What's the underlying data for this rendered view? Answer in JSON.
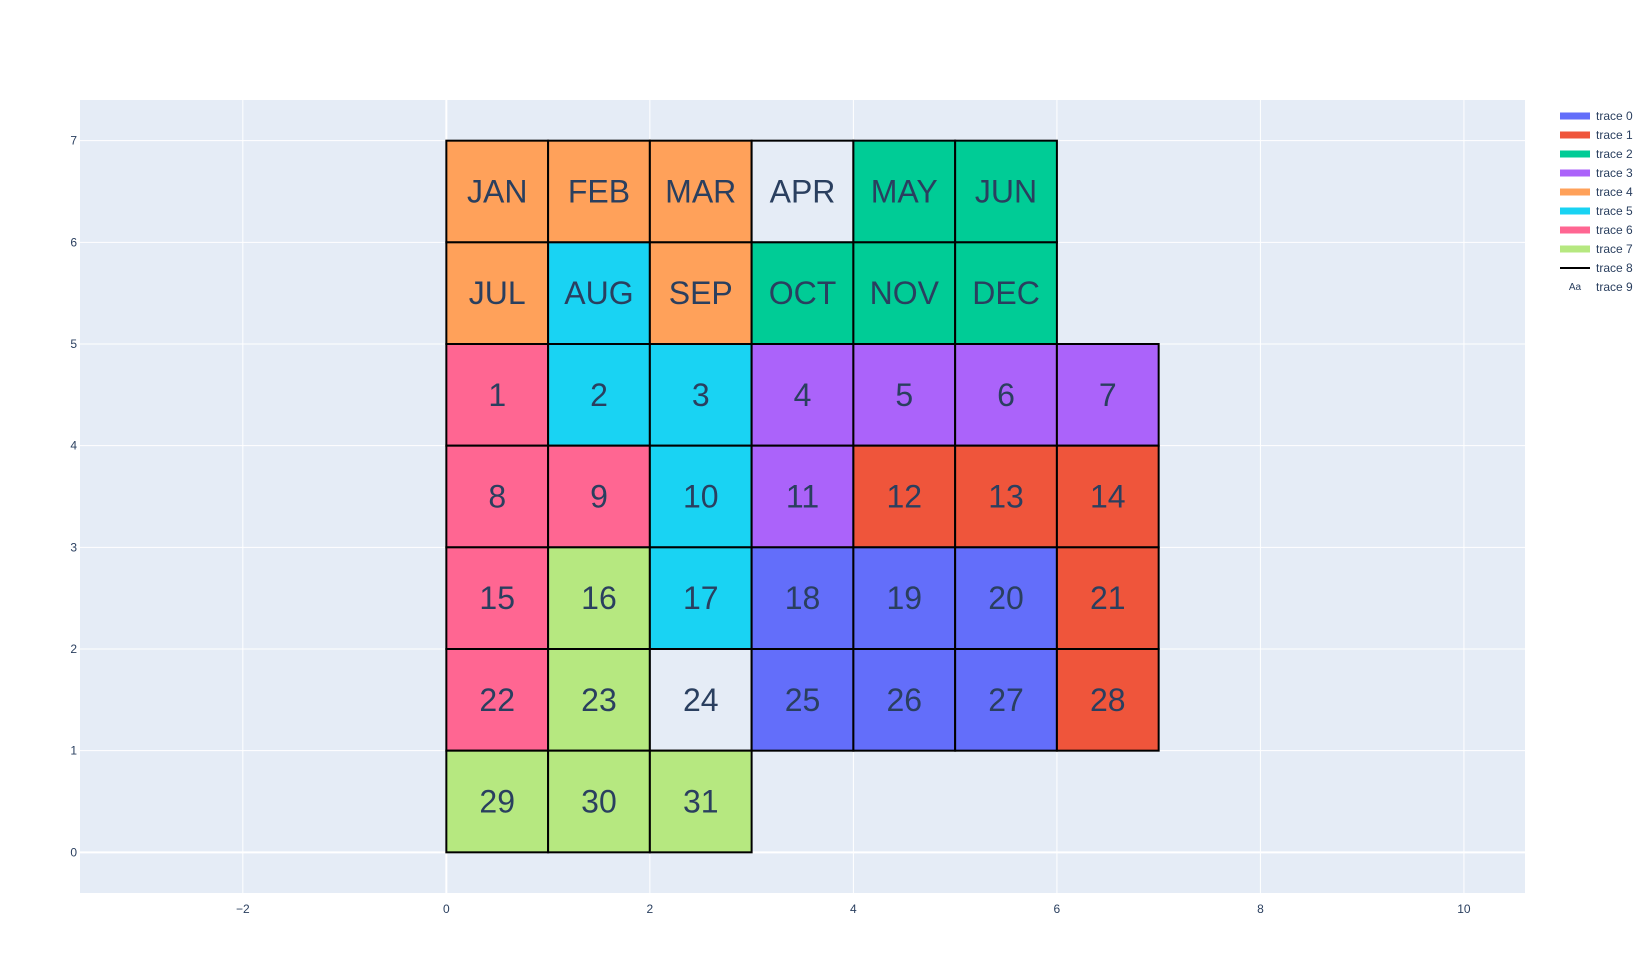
{
  "chart_data": {
    "type": "table",
    "xlim": [
      -3.6,
      10.6
    ],
    "ylim": [
      -0.4,
      7.4
    ],
    "x_ticks": [
      -2,
      0,
      2,
      4,
      6,
      8,
      10
    ],
    "x_tick_labels": [
      "−2",
      "0",
      "2",
      "4",
      "6",
      "8",
      "10"
    ],
    "y_ticks": [
      0,
      1,
      2,
      3,
      4,
      5,
      6,
      7
    ],
    "y_tick_labels": [
      "0",
      "1",
      "2",
      "3",
      "4",
      "5",
      "6",
      "7"
    ],
    "grid": true,
    "legend_position": "top-right",
    "series": [
      {
        "name": "trace 0",
        "color": "#636efa"
      },
      {
        "name": "trace 1",
        "color": "#ef553b"
      },
      {
        "name": "trace 2",
        "color": "#00cc96"
      },
      {
        "name": "trace 3",
        "color": "#ab63fa"
      },
      {
        "name": "trace 4",
        "color": "#ffa15a"
      },
      {
        "name": "trace 5",
        "color": "#19d3f3"
      },
      {
        "name": "trace 6",
        "color": "#ff6692"
      },
      {
        "name": "trace 7",
        "color": "#b6e880"
      },
      {
        "name": "trace 8",
        "color": "#000000",
        "kind": "line"
      },
      {
        "name": "trace 9",
        "color": "#2a3f5f",
        "kind": "text",
        "marker": "Aa"
      }
    ],
    "cells": [
      {
        "x": 0,
        "y": 6,
        "label": "JAN",
        "trace": 4
      },
      {
        "x": 1,
        "y": 6,
        "label": "FEB",
        "trace": 4
      },
      {
        "x": 2,
        "y": 6,
        "label": "MAR",
        "trace": 4
      },
      {
        "x": 3,
        "y": 6,
        "label": "APR",
        "trace": null
      },
      {
        "x": 4,
        "y": 6,
        "label": "MAY",
        "trace": 2
      },
      {
        "x": 5,
        "y": 6,
        "label": "JUN",
        "trace": 2
      },
      {
        "x": 0,
        "y": 5,
        "label": "JUL",
        "trace": 4
      },
      {
        "x": 1,
        "y": 5,
        "label": "AUG",
        "trace": 5
      },
      {
        "x": 2,
        "y": 5,
        "label": "SEP",
        "trace": 4
      },
      {
        "x": 3,
        "y": 5,
        "label": "OCT",
        "trace": 2
      },
      {
        "x": 4,
        "y": 5,
        "label": "NOV",
        "trace": 2
      },
      {
        "x": 5,
        "y": 5,
        "label": "DEC",
        "trace": 2
      },
      {
        "x": 0,
        "y": 4,
        "label": "1",
        "trace": 6
      },
      {
        "x": 1,
        "y": 4,
        "label": "2",
        "trace": 5
      },
      {
        "x": 2,
        "y": 4,
        "label": "3",
        "trace": 5
      },
      {
        "x": 3,
        "y": 4,
        "label": "4",
        "trace": 3
      },
      {
        "x": 4,
        "y": 4,
        "label": "5",
        "trace": 3
      },
      {
        "x": 5,
        "y": 4,
        "label": "6",
        "trace": 3
      },
      {
        "x": 6,
        "y": 4,
        "label": "7",
        "trace": 3
      },
      {
        "x": 0,
        "y": 3,
        "label": "8",
        "trace": 6
      },
      {
        "x": 1,
        "y": 3,
        "label": "9",
        "trace": 6
      },
      {
        "x": 2,
        "y": 3,
        "label": "10",
        "trace": 5
      },
      {
        "x": 3,
        "y": 3,
        "label": "11",
        "trace": 3
      },
      {
        "x": 4,
        "y": 3,
        "label": "12",
        "trace": 1
      },
      {
        "x": 5,
        "y": 3,
        "label": "13",
        "trace": 1
      },
      {
        "x": 6,
        "y": 3,
        "label": "14",
        "trace": 1
      },
      {
        "x": 0,
        "y": 2,
        "label": "15",
        "trace": 6
      },
      {
        "x": 1,
        "y": 2,
        "label": "16",
        "trace": 7
      },
      {
        "x": 2,
        "y": 2,
        "label": "17",
        "trace": 5
      },
      {
        "x": 3,
        "y": 2,
        "label": "18",
        "trace": 0
      },
      {
        "x": 4,
        "y": 2,
        "label": "19",
        "trace": 0
      },
      {
        "x": 5,
        "y": 2,
        "label": "20",
        "trace": 0
      },
      {
        "x": 6,
        "y": 2,
        "label": "21",
        "trace": 1
      },
      {
        "x": 0,
        "y": 1,
        "label": "22",
        "trace": 6
      },
      {
        "x": 1,
        "y": 1,
        "label": "23",
        "trace": 7
      },
      {
        "x": 2,
        "y": 1,
        "label": "24",
        "trace": null
      },
      {
        "x": 3,
        "y": 1,
        "label": "25",
        "trace": 0
      },
      {
        "x": 4,
        "y": 1,
        "label": "26",
        "trace": 0
      },
      {
        "x": 5,
        "y": 1,
        "label": "27",
        "trace": 0
      },
      {
        "x": 6,
        "y": 1,
        "label": "28",
        "trace": 1
      },
      {
        "x": 0,
        "y": 0,
        "label": "29",
        "trace": 7
      },
      {
        "x": 1,
        "y": 0,
        "label": "30",
        "trace": 7
      },
      {
        "x": 2,
        "y": 0,
        "label": "31",
        "trace": 7
      }
    ]
  }
}
